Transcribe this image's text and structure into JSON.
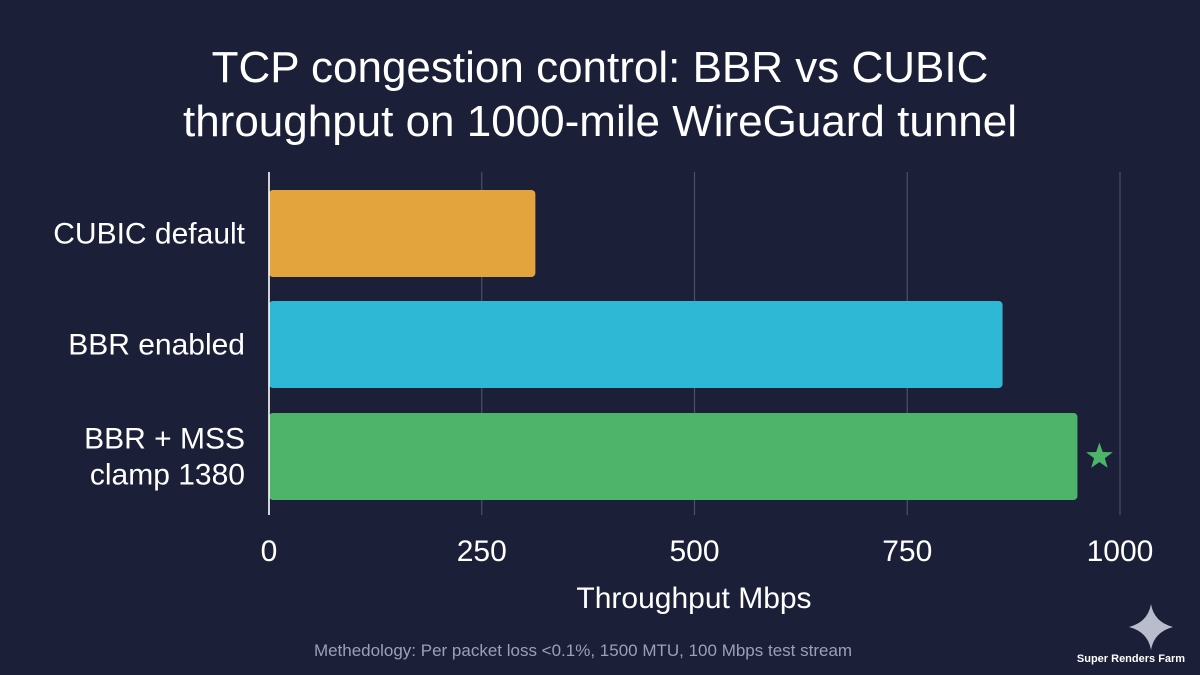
{
  "chart_data": {
    "type": "bar",
    "orientation": "horizontal",
    "title_lines": [
      "TCP congestion control: BBR vs CUBIC",
      "throughput on 1000-mile WireGuard tunnel"
    ],
    "categories": [
      [
        "CUBIC default"
      ],
      [
        "BBR enabled"
      ],
      [
        "BBR + MSS",
        "clamp 1380"
      ]
    ],
    "values": [
      313,
      862,
      950
    ],
    "colors": [
      "#e3a43d",
      "#2fb8d6",
      "#4db46a"
    ],
    "highlight_index": 2,
    "highlight_marker": "star-icon",
    "highlight_color": "#4db46a",
    "xlabel": "Throughput Mbps",
    "xlim": [
      0,
      1000
    ],
    "xticks": [
      0,
      250,
      500,
      750,
      1000
    ],
    "grid": true
  },
  "footnote": "Methedology: Per packet loss <0.1%, 1500 MTU, 100 Mbps test stream",
  "brand": {
    "name": "Super Renders Farm",
    "logo_icon": "sparkle-icon"
  }
}
